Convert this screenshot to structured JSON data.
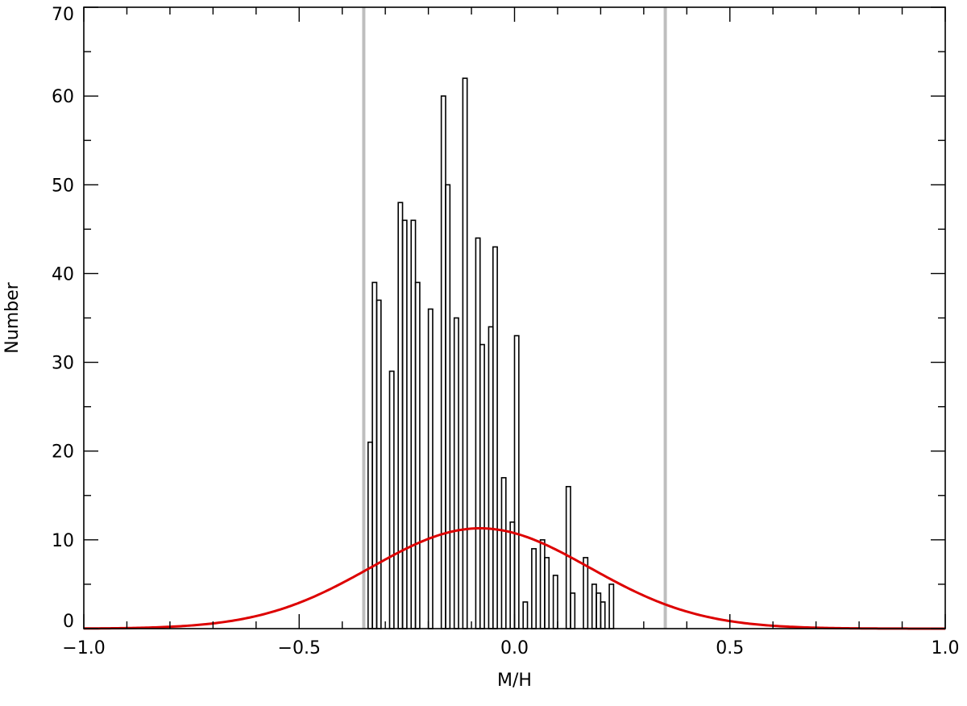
{
  "chart_data": {
    "type": "bar",
    "xlabel": "M/H",
    "ylabel": "Number",
    "xlim": [
      -1.0,
      1.0
    ],
    "ylim": [
      0,
      70
    ],
    "x_ticks": [
      -1.0,
      -0.5,
      0.0,
      0.5,
      1.0
    ],
    "x_tick_labels": [
      "−1.0",
      "−0.5",
      "0.0",
      "0.5",
      "1.0"
    ],
    "x_minor_step": 0.1,
    "y_ticks": [
      0,
      10,
      20,
      30,
      40,
      50,
      60,
      70
    ],
    "y_tick_labels": [
      "0",
      "10",
      "20",
      "30",
      "40",
      "50",
      "60",
      "70"
    ],
    "y_minor_step": 5,
    "bin_width": 0.01,
    "bins_start": [
      -0.35,
      -0.34,
      -0.33,
      -0.32,
      -0.31,
      -0.3,
      -0.29,
      -0.28,
      -0.27,
      -0.26,
      -0.25,
      -0.24,
      -0.23,
      -0.22,
      -0.21,
      -0.2,
      -0.19,
      -0.18,
      -0.17,
      -0.16,
      -0.15,
      -0.14,
      -0.13,
      -0.12,
      -0.11,
      -0.1,
      -0.09,
      -0.08,
      -0.07,
      -0.06,
      -0.05,
      -0.04,
      -0.03,
      -0.02,
      -0.01,
      0.0,
      0.01,
      0.02,
      0.03,
      0.04,
      0.05,
      0.06,
      0.07,
      0.08,
      0.09,
      0.1,
      0.11,
      0.12,
      0.13,
      0.14,
      0.15,
      0.16,
      0.17,
      0.18,
      0.19,
      0.2,
      0.21,
      0.22,
      0.23,
      0.24,
      0.25,
      0.26,
      0.27,
      0.28,
      0.29,
      0.3,
      0.31,
      0.32,
      0.33,
      0.34
    ],
    "counts": [
      0,
      21,
      39,
      37,
      0,
      0,
      29,
      0,
      48,
      46,
      0,
      46,
      39,
      0,
      0,
      36,
      0,
      0,
      60,
      50,
      0,
      35,
      0,
      62,
      0,
      0,
      44,
      32,
      0,
      34,
      43,
      0,
      17,
      0,
      12,
      33,
      0,
      3,
      0,
      9,
      0,
      10,
      8,
      0,
      6,
      0,
      0,
      16,
      4,
      0,
      0,
      8,
      0,
      5,
      4,
      3,
      0,
      5,
      0,
      0,
      0,
      0,
      0,
      0,
      0,
      0,
      0,
      0,
      0,
      0
    ],
    "vertical_lines": [
      -0.35,
      0.35
    ],
    "vertical_line_color": "#bebebe",
    "gaussian": {
      "amplitude": 11.3,
      "mean": -0.08,
      "sigma": 0.255,
      "color": "#dd0000"
    }
  }
}
